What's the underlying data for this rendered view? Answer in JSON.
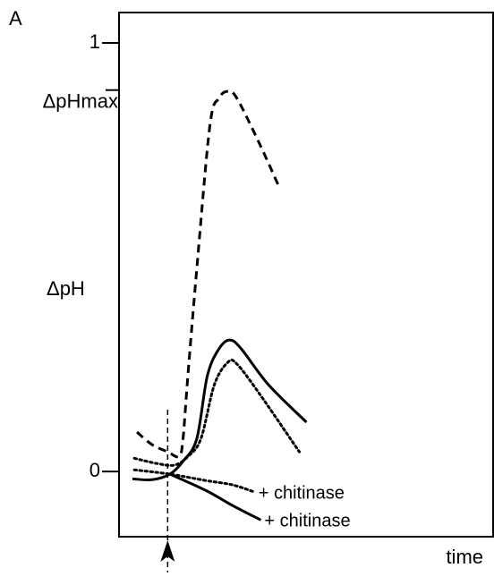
{
  "chart_data": {
    "type": "line",
    "panel_label": "A",
    "ylabel": "ΔpH",
    "xlabel": "time",
    "xlim": [
      0,
      100
    ],
    "ylim": [
      -0.152,
      1.071
    ],
    "yticks": [
      0,
      1.0,
      {
        "value": 0.89,
        "label": "ΔpHmax"
      }
    ],
    "marker_x": 13,
    "series": [
      {
        "style": "dashed",
        "color": "#000000",
        "x": [
          4.8,
          8.8,
          13,
          15.9,
          17,
          18.4,
          20.8,
          24.3,
          26.7,
          29.1,
          31.5,
          37.5,
          42.7
        ],
        "values": [
          0.092,
          0.063,
          0.046,
          0.035,
          0.067,
          0.223,
          0.474,
          0.808,
          0.871,
          0.887,
          0.871,
          0.766,
          0.666
        ]
      },
      {
        "style": "solid",
        "color": "#000000",
        "x": [
          3.6,
          8.8,
          13.6,
          17.2,
          20.8,
          23.6,
          26.7,
          29.6,
          32.7,
          39.9,
          50.1
        ],
        "values": [
          -0.017,
          -0.019,
          -0.006,
          0.025,
          0.077,
          0.223,
          0.286,
          0.307,
          0.286,
          0.203,
          0.115
        ]
      },
      {
        "style": "dotted",
        "color": "#000000",
        "x": [
          4.1,
          10,
          14.8,
          18.4,
          21.9,
          25.5,
          29.1,
          31.5,
          37.5,
          48.2
        ],
        "values": [
          0.031,
          0.019,
          0.015,
          0.035,
          0.077,
          0.203,
          0.255,
          0.251,
          0.182,
          0.046
        ]
      },
      {
        "name": "+ chitinase",
        "style": "solid",
        "color": "#000000",
        "x": [
          13.6,
          23.2,
          30.3,
          37.9
        ],
        "values": [
          -0.006,
          -0.044,
          -0.079,
          -0.113
        ]
      },
      {
        "name": "+ chitinase",
        "style": "dotted",
        "color": "#000000",
        "x": [
          4.1,
          13.6,
          23.2,
          30.3,
          36.3
        ],
        "values": [
          0.004,
          -0.006,
          -0.021,
          -0.031,
          -0.048
        ]
      }
    ]
  }
}
